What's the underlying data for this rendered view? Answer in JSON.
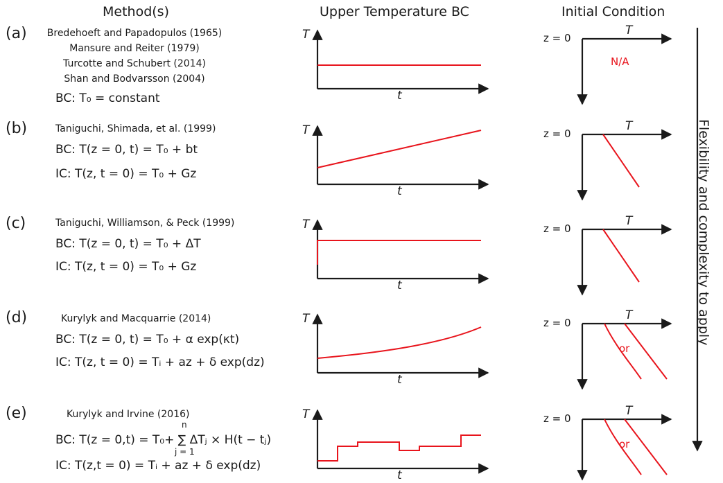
{
  "headers": {
    "method": "Method(s)",
    "upper_bc": "Upper Temperature BC",
    "initial": "Initial Condition"
  },
  "side_label": "Flexibility and complexity to apply",
  "axis_T": "T",
  "axis_t": "t",
  "axis_z0": "z = 0",
  "rows": [
    {
      "letter": "(a)",
      "refs": [
        "Bredehoeft and Papadopulos (1965)",
        "Mansure and Reiter (1979)",
        "Turcotte and Schubert (2014)",
        "Shan and Bodvarsson (2004)"
      ],
      "bc": "BC: T₀ = constant",
      "ic": "",
      "ic_annotation": "N/A"
    },
    {
      "letter": "(b)",
      "refs": [
        "Taniguchi, Shimada, et al. (1999)"
      ],
      "bc": "BC: T(z = 0, t) = T₀ + bt",
      "ic": "IC: T(z, t = 0) = T₀ + Gz",
      "ic_annotation": ""
    },
    {
      "letter": "(c)",
      "refs": [
        "Taniguchi, Williamson, & Peck (1999)"
      ],
      "bc": "BC: T(z = 0, t) = T₀ + ΔT",
      "ic": "IC: T(z, t = 0) = T₀ + Gz",
      "ic_annotation": ""
    },
    {
      "letter": "(d)",
      "refs": [
        "Kurylyk and Macquarrie (2014)"
      ],
      "bc": "BC: T(z = 0, t) = T₀ + α exp(κt)",
      "ic": "IC: T(z, t = 0) = Tᵢ + az + δ exp(dz)",
      "ic_annotation": "or"
    },
    {
      "letter": "(e)",
      "refs": [
        "Kurylyk and Irvine (2016)"
      ],
      "bc": "BC: T(z = 0,t) = T₀+ ∑ ΔTⱼ × H(t − tⱼ)",
      "bc_sum_top": "n",
      "bc_sum_bottom": "j = 1",
      "ic": "IC: T(z,t = 0) = Tᵢ + az + δ exp(dz)",
      "ic_annotation": "or"
    }
  ],
  "colors": {
    "curve": "#e8141c",
    "axis": "#1a1a1a"
  }
}
